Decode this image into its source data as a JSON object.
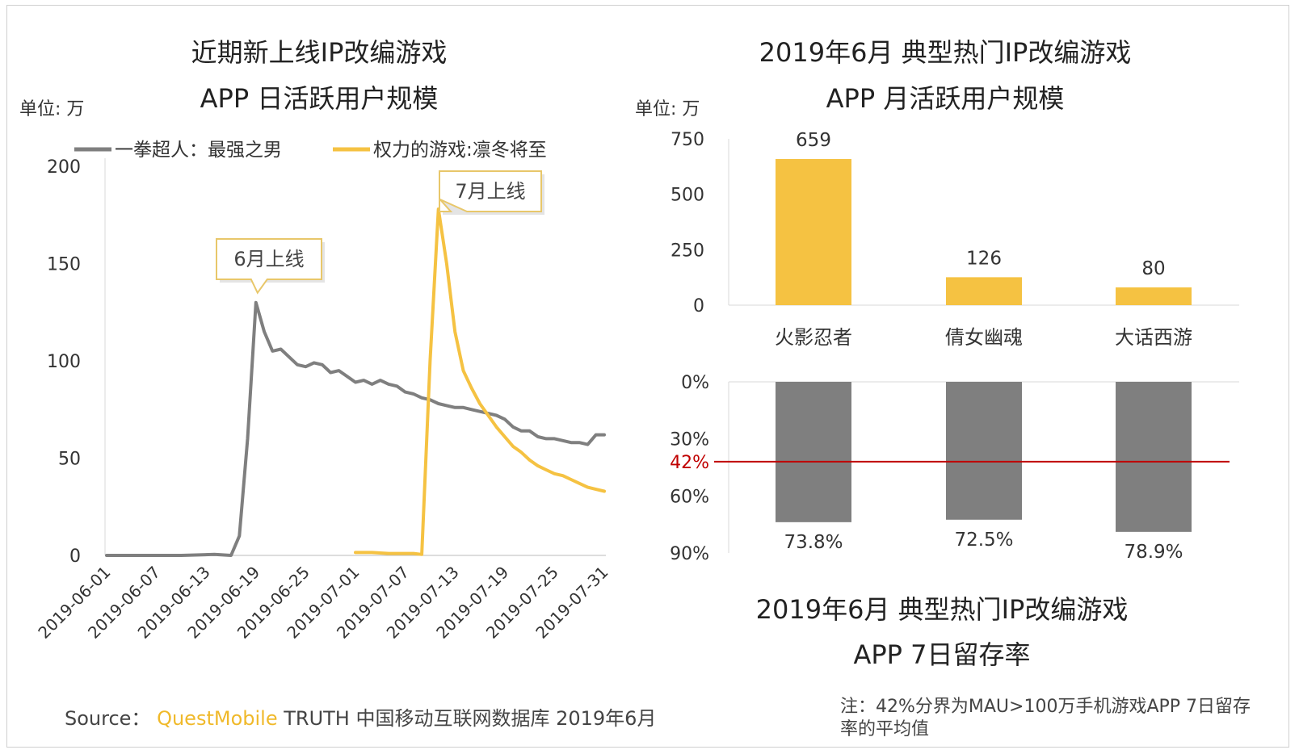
{
  "colors": {
    "gray": "#7f7f7f",
    "yellow": "#f5c242",
    "bar_yellow": "#f5c242",
    "bar_gray": "#7f7f7f",
    "ref_line": "#c00000",
    "axis_text": "#333333"
  },
  "source": {
    "prefix": "Source：",
    "brand": "QuestMobile",
    "rest": "TRUTH 中国移动互联网数据库 2019年6月"
  },
  "note": "注：42%分界为MAU>100万手机游戏APP 7日留存率的平均值",
  "chart_data": [
    {
      "type": "line",
      "title_lines": [
        "近期新上线IP改编游戏",
        "APP 日活跃用户规模"
      ],
      "unit": "单位: 万",
      "ylim": [
        0,
        200
      ],
      "yticks": [
        0,
        50,
        100,
        150,
        200
      ],
      "xlim": [
        "2019-06-01",
        "2019-07-31"
      ],
      "xticks": [
        "2019-06-01",
        "2019-06-07",
        "2019-06-13",
        "2019-06-19",
        "2019-06-25",
        "2019-07-01",
        "2019-07-07",
        "2019-07-13",
        "2019-07-19",
        "2019-07-25",
        "2019-07-31"
      ],
      "legend_position": "top",
      "series": [
        {
          "name": "一拳超人：最强之男",
          "color": "#7f7f7f",
          "points": [
            [
              "2019-06-01",
              0
            ],
            [
              "2019-06-05",
              0
            ],
            [
              "2019-06-10",
              0
            ],
            [
              "2019-06-14",
              0.5
            ],
            [
              "2019-06-16",
              0
            ],
            [
              "2019-06-17",
              10
            ],
            [
              "2019-06-18",
              60
            ],
            [
              "2019-06-19",
              130
            ],
            [
              "2019-06-20",
              115
            ],
            [
              "2019-06-21",
              105
            ],
            [
              "2019-06-22",
              106
            ],
            [
              "2019-06-23",
              102
            ],
            [
              "2019-06-24",
              98
            ],
            [
              "2019-06-25",
              97
            ],
            [
              "2019-06-26",
              99
            ],
            [
              "2019-06-27",
              98
            ],
            [
              "2019-06-28",
              94
            ],
            [
              "2019-06-29",
              95
            ],
            [
              "2019-06-30",
              92
            ],
            [
              "2019-07-01",
              89
            ],
            [
              "2019-07-02",
              90
            ],
            [
              "2019-07-03",
              88
            ],
            [
              "2019-07-04",
              90
            ],
            [
              "2019-07-05",
              88
            ],
            [
              "2019-07-06",
              87
            ],
            [
              "2019-07-07",
              84
            ],
            [
              "2019-07-08",
              83
            ],
            [
              "2019-07-09",
              81
            ],
            [
              "2019-07-10",
              80
            ],
            [
              "2019-07-11",
              78
            ],
            [
              "2019-07-12",
              77
            ],
            [
              "2019-07-13",
              76
            ],
            [
              "2019-07-14",
              76
            ],
            [
              "2019-07-15",
              75
            ],
            [
              "2019-07-16",
              74
            ],
            [
              "2019-07-17",
              73
            ],
            [
              "2019-07-18",
              72
            ],
            [
              "2019-07-19",
              70
            ],
            [
              "2019-07-20",
              66
            ],
            [
              "2019-07-21",
              64
            ],
            [
              "2019-07-22",
              64
            ],
            [
              "2019-07-23",
              61
            ],
            [
              "2019-07-24",
              60
            ],
            [
              "2019-07-25",
              60
            ],
            [
              "2019-07-26",
              59
            ],
            [
              "2019-07-27",
              58
            ],
            [
              "2019-07-28",
              58
            ],
            [
              "2019-07-29",
              57
            ],
            [
              "2019-07-30",
              62
            ],
            [
              "2019-07-31",
              62
            ]
          ]
        },
        {
          "name": "权力的游戏:凛冬将至",
          "color": "#f5c242",
          "points": [
            [
              "2019-07-01",
              1.5
            ],
            [
              "2019-07-03",
              1.5
            ],
            [
              "2019-07-05",
              1
            ],
            [
              "2019-07-08",
              1
            ],
            [
              "2019-07-09",
              0.5
            ],
            [
              "2019-07-10",
              100
            ],
            [
              "2019-07-11",
              178
            ],
            [
              "2019-07-12",
              150
            ],
            [
              "2019-07-13",
              115
            ],
            [
              "2019-07-14",
              95
            ],
            [
              "2019-07-15",
              86
            ],
            [
              "2019-07-16",
              78
            ],
            [
              "2019-07-17",
              72
            ],
            [
              "2019-07-18",
              66
            ],
            [
              "2019-07-19",
              61
            ],
            [
              "2019-07-20",
              56
            ],
            [
              "2019-07-21",
              53
            ],
            [
              "2019-07-22",
              49
            ],
            [
              "2019-07-23",
              46
            ],
            [
              "2019-07-24",
              44
            ],
            [
              "2019-07-25",
              42
            ],
            [
              "2019-07-26",
              41
            ],
            [
              "2019-07-27",
              39
            ],
            [
              "2019-07-28",
              37
            ],
            [
              "2019-07-29",
              35
            ],
            [
              "2019-07-30",
              34
            ],
            [
              "2019-07-31",
              33
            ]
          ]
        }
      ],
      "annotations": [
        {
          "text": "6月上线",
          "x": "2019-06-19",
          "y": 130
        },
        {
          "text": "7月上线",
          "x": "2019-07-11",
          "y": 178
        }
      ]
    },
    {
      "type": "bar",
      "title_lines": [
        "2019年6月 典型热门IP改编游戏",
        "APP 月活跃用户规模"
      ],
      "unit": "单位: 万",
      "categories": [
        "火影忍者",
        "倩女幽魂",
        "大话西游"
      ],
      "values": [
        659,
        126,
        80
      ],
      "ylim": [
        0,
        750
      ],
      "yticks": [
        0,
        250,
        500,
        750
      ]
    },
    {
      "type": "bar",
      "orientation": "downward",
      "title_lines": [
        "2019年6月 典型热门IP改编游戏",
        "APP 7日留存率"
      ],
      "categories": [
        "火影忍者",
        "倩女幽魂",
        "大话西游"
      ],
      "values": [
        73.8,
        72.5,
        78.9
      ],
      "value_labels": [
        "73.8%",
        "72.5%",
        "78.9%"
      ],
      "ylim": [
        0,
        90
      ],
      "yticks": [
        0,
        30,
        60,
        90
      ],
      "ytick_labels": [
        "0%",
        "30%",
        "60%",
        "90%"
      ],
      "reference_line": {
        "value": 42,
        "label": "42%"
      }
    }
  ]
}
